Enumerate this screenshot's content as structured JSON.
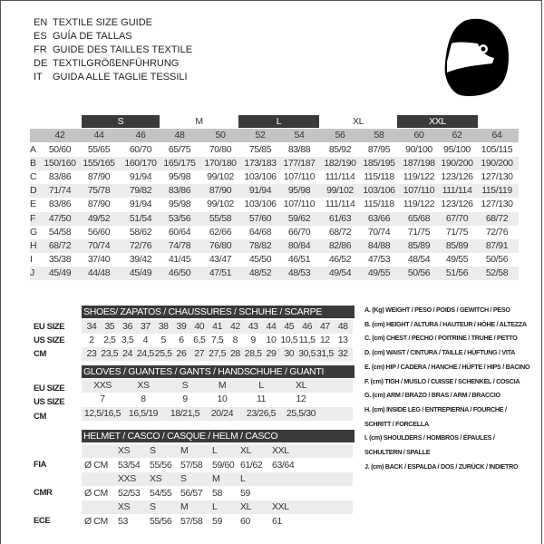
{
  "titles": [
    {
      "code": "EN",
      "text": "TEXTILE SIZE GUIDE"
    },
    {
      "code": "ES",
      "text": "GUÍA DE TALLAS"
    },
    {
      "code": "FR",
      "text": "GUIDE DES TAILLES TEXTILE"
    },
    {
      "code": "DE",
      "text": "TEXTILGRÖßENFÜHRUNG"
    },
    {
      "code": "IT",
      "text": "GUIDA ALLE TAGLIE TESSILI"
    }
  ],
  "icon": "helmet-icon",
  "textile": {
    "size_groups": [
      "S",
      "M",
      "L",
      "XL",
      "XXL"
    ],
    "columns": [
      "42",
      "44",
      "46",
      "48",
      "50",
      "52",
      "54",
      "56",
      "58",
      "60",
      "62",
      "64"
    ],
    "rows": [
      {
        "label": "A",
        "values": [
          "50/60",
          "55/65",
          "60/70",
          "65/75",
          "70/80",
          "75/85",
          "83/88",
          "85/92",
          "87/95",
          "90/100",
          "95/100",
          "105/115"
        ]
      },
      {
        "label": "B",
        "values": [
          "150/160",
          "155/165",
          "160/170",
          "165/175",
          "170/180",
          "173/183",
          "177/187",
          "182/190",
          "185/195",
          "187/198",
          "190/200",
          "190/200"
        ]
      },
      {
        "label": "C",
        "values": [
          "83/86",
          "87/90",
          "91/94",
          "95/98",
          "99/102",
          "103/106",
          "107/110",
          "111/114",
          "115/118",
          "119/122",
          "123/126",
          "127/130"
        ]
      },
      {
        "label": "D",
        "values": [
          "71/74",
          "75/78",
          "79/82",
          "83/86",
          "87/90",
          "91/94",
          "95/98",
          "99/102",
          "103/106",
          "107/110",
          "111/114",
          "115/119"
        ]
      },
      {
        "label": "E",
        "values": [
          "83/86",
          "87/90",
          "91/94",
          "95/98",
          "99/102",
          "103/106",
          "107/110",
          "111/114",
          "115/118",
          "119/122",
          "123/126",
          "127/130"
        ]
      },
      {
        "label": "F",
        "values": [
          "47/50",
          "49/52",
          "51/54",
          "53/56",
          "55/58",
          "57/60",
          "59/62",
          "61/63",
          "63/66",
          "65/68",
          "67/70",
          "68/72"
        ]
      },
      {
        "label": "G",
        "values": [
          "54/58",
          "56/60",
          "58/62",
          "60/64",
          "62/66",
          "64/68",
          "66/70",
          "68/72",
          "70/74",
          "71/75",
          "71/75",
          "72/76"
        ]
      },
      {
        "label": "H",
        "values": [
          "68/72",
          "70/74",
          "72/76",
          "74/78",
          "76/80",
          "78/82",
          "80/84",
          "82/86",
          "84/88",
          "85/89",
          "85/89",
          "87/91"
        ]
      },
      {
        "label": "I",
        "values": [
          "35/38",
          "37/40",
          "39/42",
          "41/45",
          "43/47",
          "45/50",
          "46/51",
          "46/52",
          "47/53",
          "48/54",
          "49/55",
          "50/56"
        ]
      },
      {
        "label": "J",
        "values": [
          "45/49",
          "44/48",
          "45/49",
          "46/50",
          "47/51",
          "48/52",
          "48/53",
          "49/54",
          "49/55",
          "50/56",
          "51/56",
          "52/58"
        ]
      }
    ]
  },
  "shoes": {
    "title": "SHOES/ ZAPATOS / CHAUSSURES / SCHUHE / SCARPE",
    "rows": [
      {
        "label": "EU SIZE",
        "values": [
          "34",
          "35",
          "36",
          "37",
          "38",
          "39",
          "40",
          "41",
          "42",
          "43",
          "44",
          "45",
          "46",
          "47",
          "48"
        ]
      },
      {
        "label": "US SIZE",
        "values": [
          "2",
          "2,5",
          "3,5",
          "4",
          "5",
          "6",
          "6,5",
          "7,5",
          "8",
          "9",
          "10",
          "10,5",
          "11,5",
          "12",
          "13"
        ]
      },
      {
        "label": "CM",
        "values": [
          "23",
          "23,5",
          "24",
          "24,5",
          "25,5",
          "26",
          "27",
          "27,5",
          "28",
          "28,5",
          "29",
          "30",
          "30,5",
          "31,5",
          "32"
        ]
      }
    ]
  },
  "gloves": {
    "title": "GLOVES / GUANTES / GANTS / HANDSCHUHE / GUANTI",
    "rows": [
      {
        "label": "EU SIZE",
        "values": [
          "XXS",
          "XS",
          "S",
          "M",
          "L",
          "XL"
        ]
      },
      {
        "label": "US SIZE",
        "values": [
          "7",
          "8",
          "9",
          "10",
          "11",
          "12"
        ]
      },
      {
        "label": "CM",
        "values": [
          "12,5/16,5",
          "16,5/19",
          "18/21,5",
          "20/24",
          "23/26,5",
          "25,5/30"
        ]
      }
    ]
  },
  "helmet": {
    "title": "HELMET / CASCO / CASQUE / HELM / CASCO",
    "unit": "Ø CM",
    "standards": [
      {
        "label": "FIA",
        "sizes": [
          "XS",
          "S",
          "M",
          "L",
          "XL",
          "XXL"
        ],
        "values": [
          "53/54",
          "55/56",
          "57/58",
          "59/60",
          "61/62",
          "63/64"
        ]
      },
      {
        "label": "CMR",
        "sizes": [
          "XXS",
          "XS",
          "S",
          "M",
          "L"
        ],
        "values": [
          "52/53",
          "54/55",
          "56/57",
          "58",
          "59"
        ]
      },
      {
        "label": "ECE",
        "sizes": [
          "XS",
          "S",
          "M",
          "L",
          "XL",
          "XXL"
        ],
        "values": [
          "53",
          "55/56",
          "57/58",
          "59",
          "60",
          "61"
        ]
      }
    ]
  },
  "legend": [
    "A. (Kg) WEIGHT / PESO / POIDS / GEWITCH / PESO",
    "B. (cm) HEIGHT / ALTURA / HAUTEUR / HÖHE / ALTEZZA",
    "C. (cm) CHEST / PECHO / POITRINE / TRUHE / PETTO",
    "D. (cm) WAIST / CINTURA / TAILLE / HÜFTUNG / VITA",
    "E. (cm) HIP / CADERA / HANCHE / HÜFTE / HIPS /  BACINO",
    "F.  (cm) TIGH / MUSLO / CUISSE / SCHENKEL / COSCIA",
    "G. (cm) ARM  / BRAZO / BRAS / ARM / BRACCIO",
    "H. (cm) INSIDE LEG / ENTREPIERNA / FOURCHE /",
    "SCHRITT / FORCELLA",
    "I.  (cm) SHOULDERS / HOMBROS / ÉPAULES /",
    "SCHULTERN / SPALLE",
    "J. (cm) BACK / ESPALDA / DOS / ZURÜCK / INDIETRO"
  ]
}
